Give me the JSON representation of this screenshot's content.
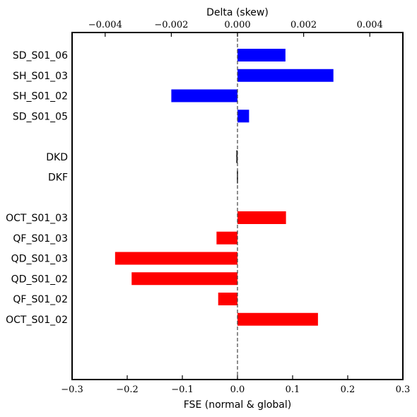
{
  "chart_data": {
    "type": "bar",
    "orientation": "horizontal",
    "xlabel": "FSE (normal & global)",
    "x2label": "Delta (skew)",
    "xlim": [
      -0.3,
      0.3
    ],
    "x2lim": [
      -0.005,
      0.005
    ],
    "xticks": [
      "−0.3",
      "−0.2",
      "−0.1",
      "0.0",
      "0.1",
      "0.2",
      "0.3"
    ],
    "x2ticks": [
      "−0.004",
      "−0.002",
      "0.000",
      "0.002",
      "0.004"
    ],
    "reference_line": "x = 0 (dashed)",
    "groups": [
      {
        "axis": "top",
        "color": "#0000ff",
        "categories": [
          "SD_S01_06",
          "SH_S01_03",
          "SH_S01_02",
          "SD_S01_05"
        ],
        "values": [
          0.00145,
          0.0029,
          -0.002,
          0.00035
        ]
      },
      {
        "axis": "bottom",
        "color": "#000000",
        "categories": [
          "DKD",
          "DKF"
        ],
        "values": [
          -0.002,
          -0.001
        ]
      },
      {
        "axis": "bottom",
        "color": "#ff0000",
        "categories": [
          "OCT_S01_03",
          "QF_S01_03",
          "QD_S01_03",
          "QD_S01_02",
          "QF_S01_02",
          "OCT_S01_02"
        ],
        "values": [
          0.088,
          -0.038,
          -0.222,
          -0.192,
          -0.035,
          0.146
        ]
      }
    ]
  }
}
